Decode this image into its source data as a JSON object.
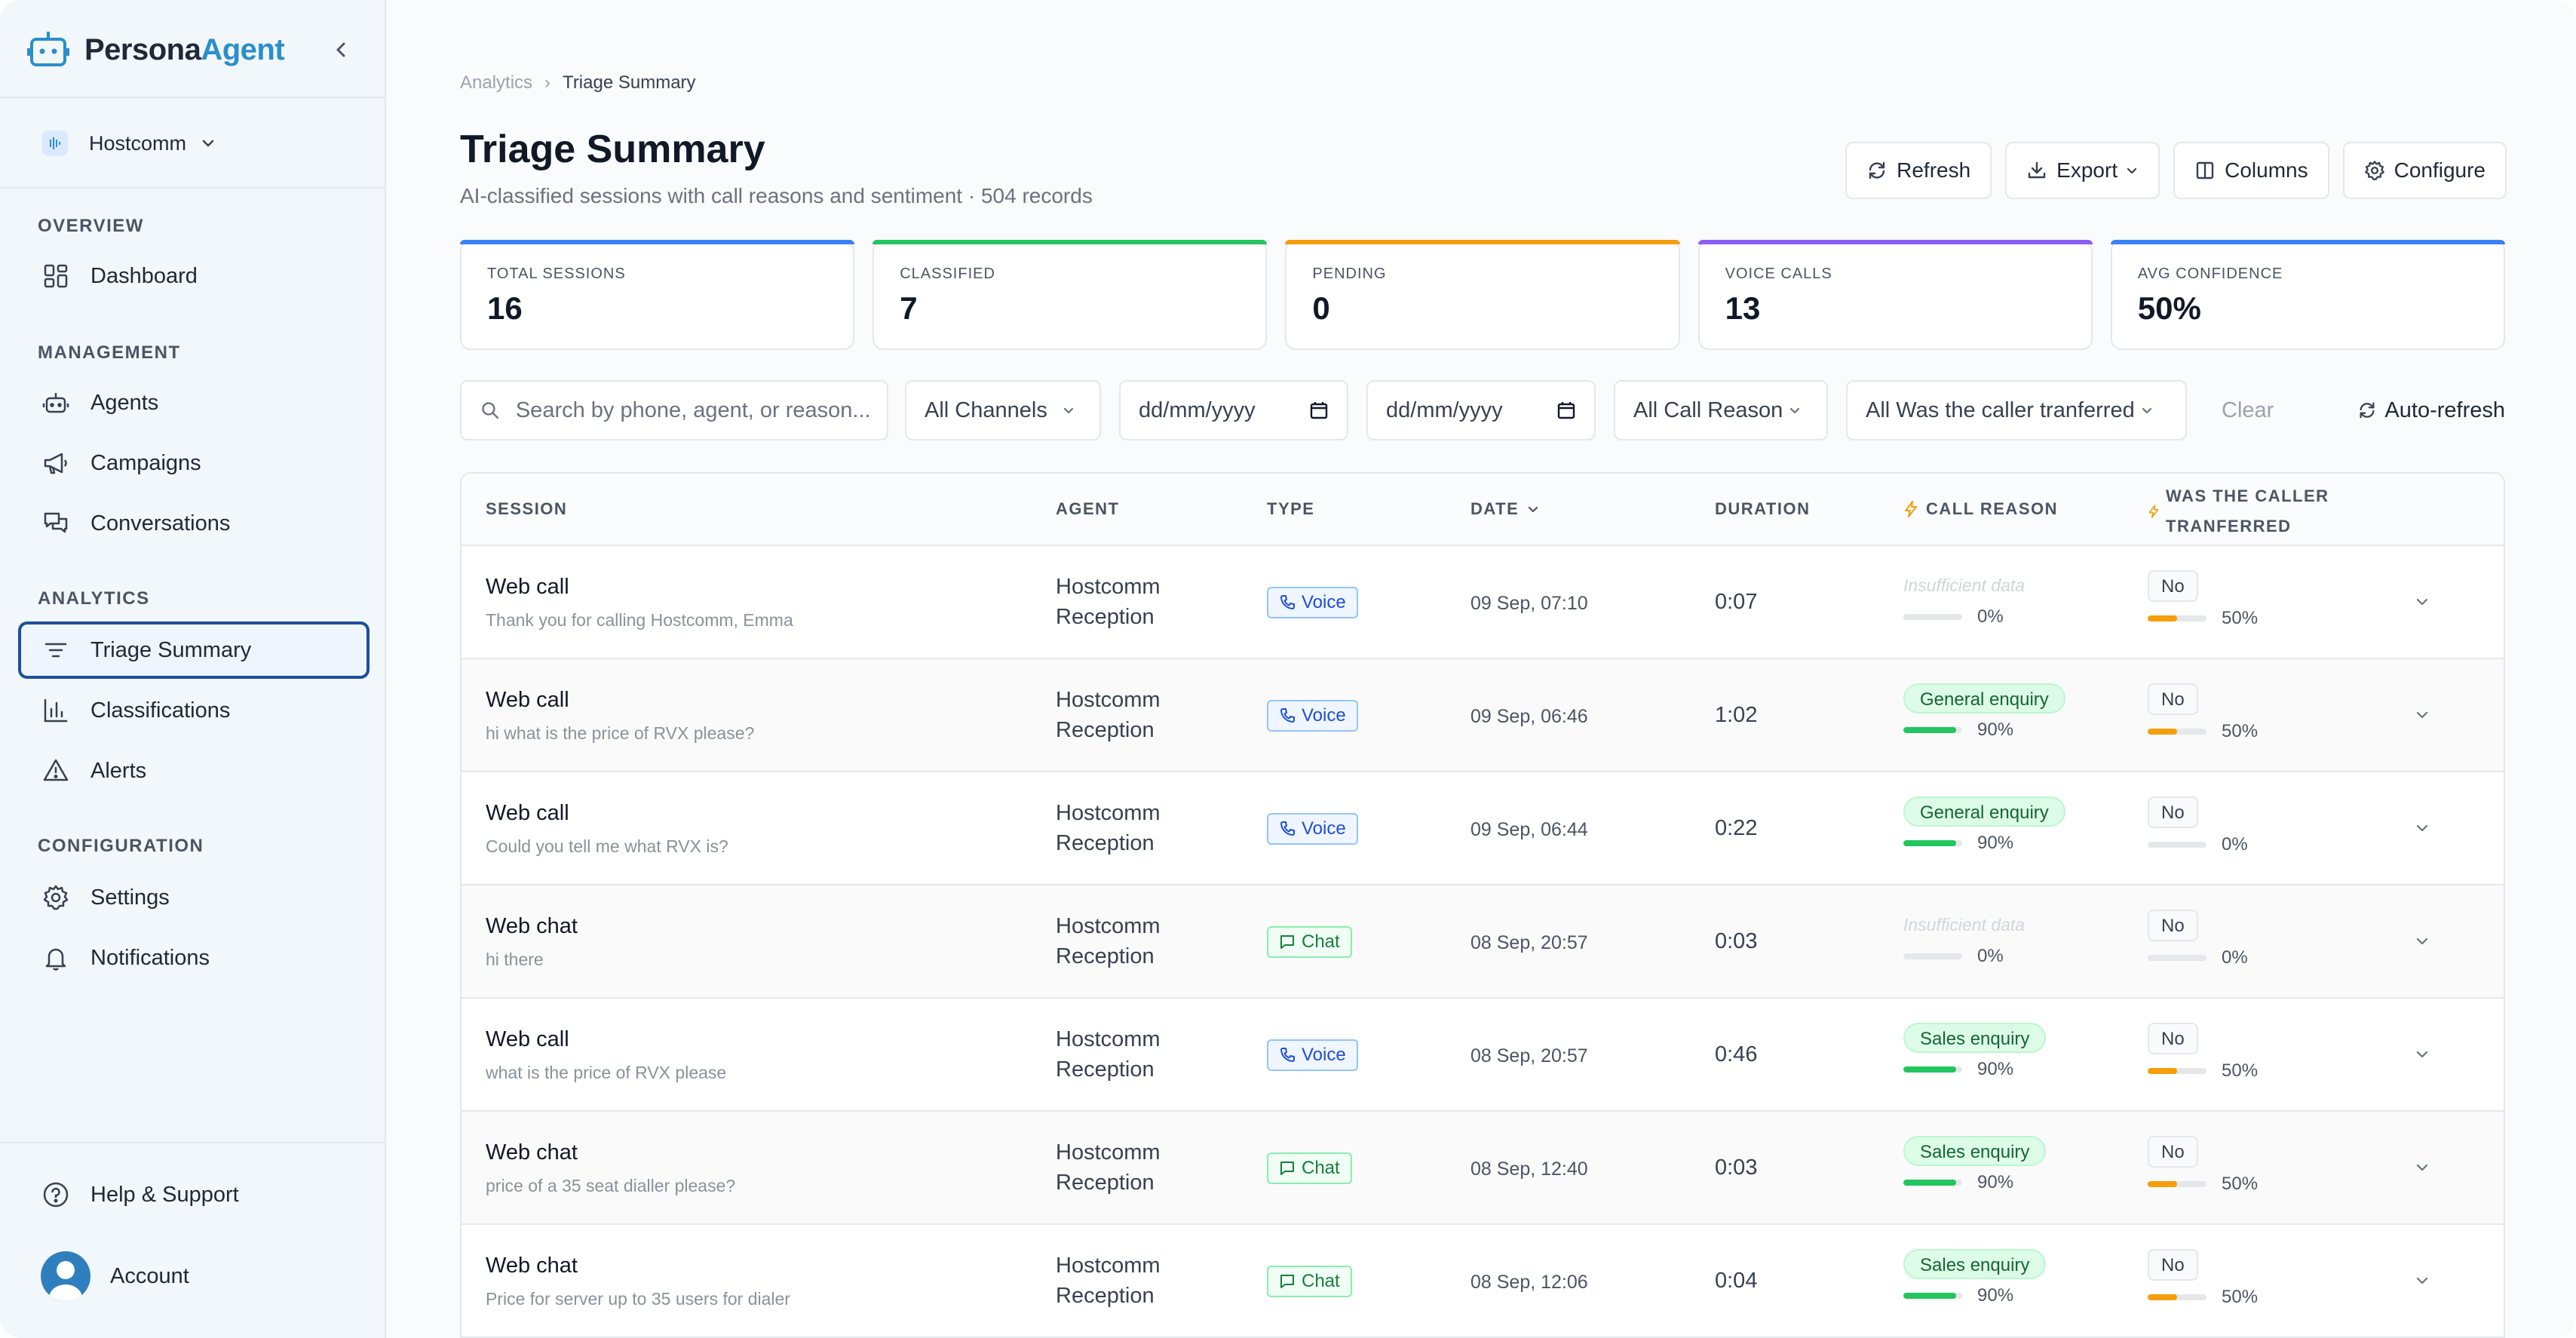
{
  "app": {
    "name_part1": "Persona",
    "name_part2": "Agent"
  },
  "workspace": {
    "name": "Hostcomm"
  },
  "sidebar": {
    "sections": [
      {
        "label": "OVERVIEW"
      },
      {
        "label": "MANAGEMENT"
      },
      {
        "label": "ANALYTICS"
      },
      {
        "label": "CONFIGURATION"
      }
    ],
    "items": [
      {
        "label": "Dashboard",
        "icon": "grid-icon"
      },
      {
        "label": "Agents",
        "icon": "bot-icon"
      },
      {
        "label": "Campaigns",
        "icon": "megaphone-icon"
      },
      {
        "label": "Conversations",
        "icon": "chat-icon"
      },
      {
        "label": "Triage Summary",
        "icon": "filter-lines-icon",
        "active": true
      },
      {
        "label": "Classifications",
        "icon": "bar-chart-icon"
      },
      {
        "label": "Alerts",
        "icon": "warning-icon"
      },
      {
        "label": "Settings",
        "icon": "gear-icon"
      },
      {
        "label": "Notifications",
        "icon": "bell-icon"
      }
    ],
    "help": "Help & Support",
    "account": "Account"
  },
  "breadcrumb": {
    "parent": "Analytics",
    "sep": "›",
    "current": "Triage Summary"
  },
  "page": {
    "title": "Triage Summary",
    "subtitle": "AI-classified sessions with call reasons and sentiment · 504 records"
  },
  "toolbar": {
    "refresh": "Refresh",
    "export": "Export",
    "columns": "Columns",
    "configure": "Configure"
  },
  "stats": [
    {
      "label": "TOTAL SESSIONS",
      "value": "16",
      "color": "#3b82f6"
    },
    {
      "label": "CLASSIFIED",
      "value": "7",
      "color": "#22c55e"
    },
    {
      "label": "PENDING",
      "value": "0",
      "color": "#f59e0b"
    },
    {
      "label": "VOICE CALLS",
      "value": "13",
      "color": "#8b5cf6"
    },
    {
      "label": "AVG CONFIDENCE",
      "value": "50%",
      "color": "#3b82f6"
    }
  ],
  "filters": {
    "search_placeholder": "Search by phone, agent, or reason...",
    "channels": "All Channels",
    "date_from": "dd/mm/yyyy",
    "date_to": "dd/mm/yyyy",
    "call_reason": "All Call Reason",
    "transferred": "All Was the caller tranferred",
    "clear": "Clear",
    "auto_refresh": "Auto-refresh"
  },
  "table": {
    "headers": {
      "session": "SESSION",
      "agent": "AGENT",
      "type": "TYPE",
      "date": "DATE",
      "duration": "DURATION",
      "call_reason": "CALL REASON",
      "transferred_1": "WAS THE CALLER",
      "transferred_2": "TRANFERRED"
    },
    "rows": [
      {
        "title": "Web call",
        "preview": "Thank you for calling Hostcomm, Emma",
        "agent1": "Hostcomm",
        "agent2": "Reception",
        "type": "Voice",
        "date": "09 Sep, 07:10",
        "duration": "0:07",
        "reason": "Insufficient data",
        "reason_pct": "0%",
        "reason_conf": 0,
        "transferred": "No",
        "transfer_pct": "50%",
        "transfer_conf": 0.5
      },
      {
        "title": "Web call",
        "preview": "hi what is the price of RVX please?",
        "agent1": "Hostcomm",
        "agent2": "Reception",
        "type": "Voice",
        "date": "09 Sep, 06:46",
        "duration": "1:02",
        "reason": "General enquiry",
        "reason_pct": "90%",
        "reason_conf": 0.9,
        "transferred": "No",
        "transfer_pct": "50%",
        "transfer_conf": 0.5
      },
      {
        "title": "Web call",
        "preview": "Could you tell me what RVX is?",
        "agent1": "Hostcomm",
        "agent2": "Reception",
        "type": "Voice",
        "date": "09 Sep, 06:44",
        "duration": "0:22",
        "reason": "General enquiry",
        "reason_pct": "90%",
        "reason_conf": 0.9,
        "transferred": "No",
        "transfer_pct": "0%",
        "transfer_conf": 0
      },
      {
        "title": "Web chat",
        "preview": "hi there",
        "agent1": "Hostcomm",
        "agent2": "Reception",
        "type": "Chat",
        "date": "08 Sep, 20:57",
        "duration": "0:03",
        "reason": "Insufficient data",
        "reason_pct": "0%",
        "reason_conf": 0,
        "transferred": "No",
        "transfer_pct": "0%",
        "transfer_conf": 0
      },
      {
        "title": "Web call",
        "preview": "what is the price of RVX please",
        "agent1": "Hostcomm",
        "agent2": "Reception",
        "type": "Voice",
        "date": "08 Sep, 20:57",
        "duration": "0:46",
        "reason": "Sales enquiry",
        "reason_pct": "90%",
        "reason_conf": 0.9,
        "transferred": "No",
        "transfer_pct": "50%",
        "transfer_conf": 0.5
      },
      {
        "title": "Web chat",
        "preview": "price of a 35 seat dialler please?",
        "agent1": "Hostcomm",
        "agent2": "Reception",
        "type": "Chat",
        "date": "08 Sep, 12:40",
        "duration": "0:03",
        "reason": "Sales enquiry",
        "reason_pct": "90%",
        "reason_conf": 0.9,
        "transferred": "No",
        "transfer_pct": "50%",
        "transfer_conf": 0.5
      },
      {
        "title": "Web chat",
        "preview": "Price for server up to 35 users for dialer",
        "agent1": "Hostcomm",
        "agent2": "Reception",
        "type": "Chat",
        "date": "08 Sep, 12:06",
        "duration": "0:04",
        "reason": "Sales enquiry",
        "reason_pct": "90%",
        "reason_conf": 0.9,
        "transferred": "No",
        "transfer_pct": "50%",
        "transfer_conf": 0.5
      }
    ]
  },
  "colors": {
    "accent": "#2b8fcb",
    "active_border": "#1e4f9c",
    "confidence_high": "#22c55e",
    "confidence_mid": "#f59e0b"
  }
}
